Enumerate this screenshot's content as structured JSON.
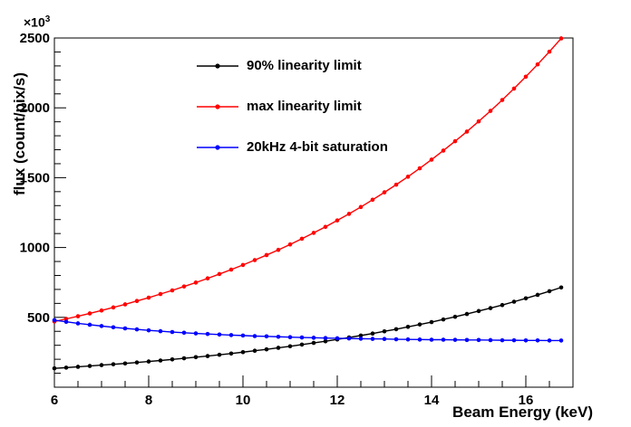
{
  "chart": {
    "x_axis": {
      "label": "Beam Energy (keV)",
      "min": 6,
      "max": 17,
      "major_ticks": [
        6,
        8,
        10,
        12,
        14,
        16
      ],
      "minor_step": 0.5
    },
    "y_axis": {
      "label": "flux (count/pix/s)",
      "min": 0,
      "max": 2500,
      "major_ticks": [
        500,
        1000,
        1500,
        2000,
        2500
      ],
      "minor_step": 100,
      "multiplier_base": "×10",
      "multiplier_exp": "3"
    },
    "frame_color": "#000000",
    "background": "#ffffff"
  },
  "chart_data": {
    "type": "line",
    "title": "",
    "xlabel": "Beam Energy (keV)",
    "ylabel": "flux (count/pix/s)",
    "xlim": [
      6,
      17
    ],
    "ylim": [
      0,
      2500
    ],
    "y_unit_multiplier": 1000,
    "grid": false,
    "marker": "dot",
    "legend_position": "top-left-inside",
    "x": [
      6,
      6.25,
      6.5,
      6.75,
      7,
      7.25,
      7.5,
      7.75,
      8,
      8.25,
      8.5,
      8.75,
      9,
      9.25,
      9.5,
      9.75,
      10,
      10.25,
      10.5,
      10.75,
      11,
      11.25,
      11.5,
      11.75,
      12,
      12.25,
      12.5,
      12.75,
      13,
      13.25,
      13.5,
      13.75,
      14,
      14.25,
      14.5,
      14.75,
      15,
      15.25,
      15.5,
      15.75,
      16,
      16.25,
      16.5,
      16.75
    ],
    "series": [
      {
        "name": "90% linearity limit",
        "color": "#000000",
        "values": [
          135,
          140,
          146,
          152,
          158,
          164,
          170,
          177,
          184,
          191,
          199,
          207,
          215,
          223,
          232,
          241,
          251,
          261,
          271,
          282,
          293,
          305,
          317,
          329,
          342,
          356,
          370,
          384,
          400,
          415,
          432,
          449,
          466,
          485,
          504,
          524,
          545,
          566,
          588,
          612,
          636,
          661,
          687,
          714
        ]
      },
      {
        "name": "max linearity limit",
        "color": "#ff0000",
        "values": [
          470,
          489,
          508,
          528,
          549,
          571,
          593,
          617,
          641,
          667,
          693,
          721,
          749,
          779,
          810,
          842,
          875,
          910,
          946,
          983,
          1022,
          1063,
          1105,
          1148,
          1194,
          1241,
          1290,
          1342,
          1395,
          1450,
          1507,
          1567,
          1629,
          1694,
          1761,
          1830,
          1903,
          1978,
          2056,
          2138,
          2223,
          2311,
          2402,
          2497
        ]
      },
      {
        "name": "20kHz 4-bit saturation",
        "color": "#0000ff",
        "values": [
          480,
          468,
          457,
          447,
          438,
          429,
          421,
          414,
          407,
          401,
          395,
          390,
          385,
          381,
          377,
          373,
          370,
          366,
          364,
          361,
          358,
          356,
          354,
          352,
          350,
          349,
          347,
          346,
          345,
          343,
          342,
          341,
          340,
          340,
          339,
          338,
          338,
          337,
          336,
          336,
          335,
          335,
          334,
          334
        ]
      }
    ]
  }
}
